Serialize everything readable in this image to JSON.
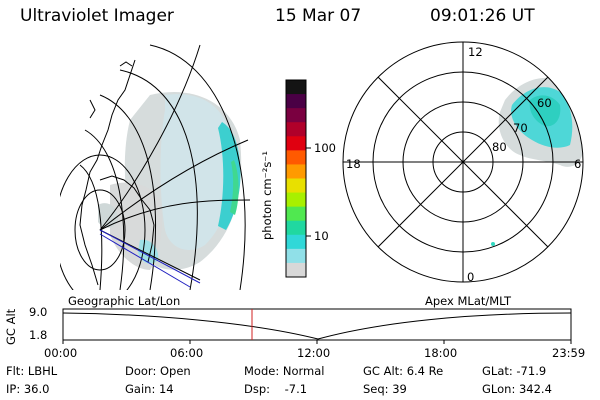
{
  "header": {
    "instrument": "Ultraviolet Imager",
    "date": "15 Mar 07",
    "time": "09:01:26 UT"
  },
  "colorbar": {
    "unit_label": "photon cm⁻²s⁻¹",
    "ticks": [
      "100",
      "10"
    ],
    "colors": [
      "#141414",
      "#4a0045",
      "#7a0040",
      "#b0002a",
      "#e00010",
      "#ff5a00",
      "#ff9a00",
      "#e8e000",
      "#a8f000",
      "#50e850",
      "#20d8a0",
      "#30d8d8",
      "#90e0e8",
      "#d8d8d8"
    ]
  },
  "polar": {
    "mlt_labels": {
      "top": "12",
      "left": "18",
      "right": "6",
      "bottom": "0"
    },
    "lat_labels": [
      "60",
      "70",
      "80"
    ]
  },
  "timeline": {
    "left_title": "Geographic Lat/Lon",
    "right_title": "Apex MLat/MLT",
    "axis_label": "GC Alt",
    "y_max": "9.0",
    "y_min": "1.8",
    "x_ticks": [
      "00:00",
      "06:00",
      "12:00",
      "18:00",
      "23:59"
    ]
  },
  "status": {
    "flt": "Flt: LBHL",
    "ip": "IP: 36.0",
    "door": "Door: Open",
    "gain": "Gain: 14",
    "mode": "Mode: Normal",
    "dsp": "Dsp:    -7.1",
    "gcalt": "GC Alt: 6.4 Re",
    "seq": "Seq: 39",
    "glat": "GLat: -71.9",
    "glon": "GLon: 342.4"
  }
}
